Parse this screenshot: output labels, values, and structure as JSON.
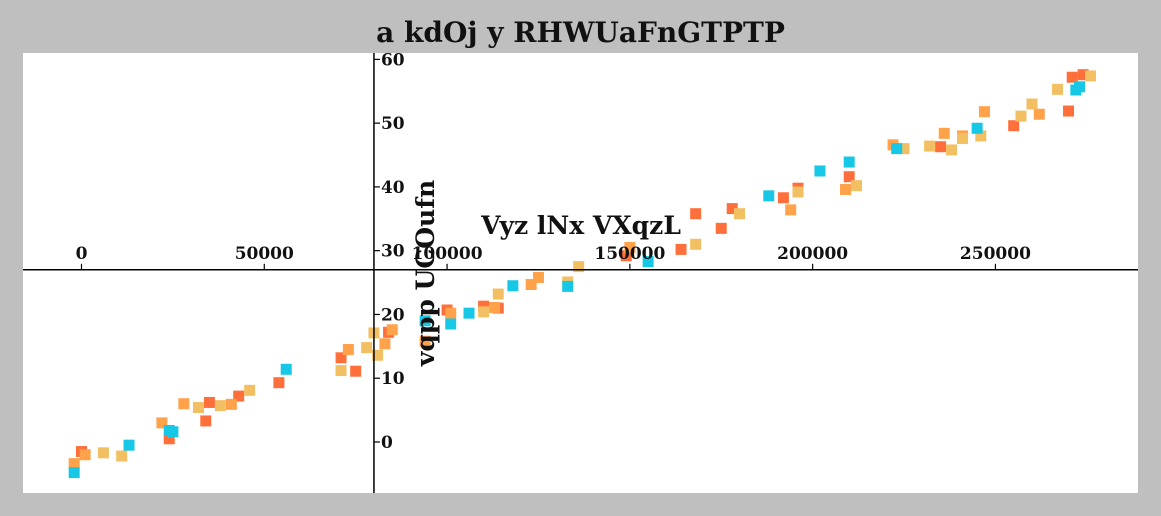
{
  "chart_data": {
    "type": "scatter",
    "title": "a kdOj y RHWUaFnGTPTP",
    "xlabel": "Vyz lNx VXqzL",
    "ylabel": "vqpp UCOufn",
    "xlim": [
      -16000,
      289000
    ],
    "ylim": [
      -8,
      61
    ],
    "x_ticks": [
      0,
      50000,
      100000,
      150000,
      200000,
      250000
    ],
    "x_tick_labels": [
      "0",
      "50000",
      "100000",
      "150000",
      "200000",
      "250000"
    ],
    "y_ticks": [
      0,
      10,
      20,
      30,
      40,
      50,
      60
    ],
    "y_tick_labels": [
      "0",
      "10",
      "20",
      "30",
      "40",
      "50",
      "60"
    ],
    "axes_cross": {
      "x_axis_at_y": 27,
      "y_axis_at_x": 80000
    },
    "grid": false,
    "legend": "none",
    "marker": "square",
    "series": [
      {
        "color": "#ff6f3c",
        "points": [
          [
            0,
            -1.5
          ],
          [
            24000,
            0.5
          ],
          [
            34000,
            3.3
          ],
          [
            35000,
            6.2
          ],
          [
            43000,
            7.2
          ],
          [
            54000,
            9.3
          ],
          [
            71000,
            13.2
          ],
          [
            75000,
            11.1
          ],
          [
            84000,
            17.2
          ],
          [
            100000,
            20.7
          ],
          [
            110000,
            21.3
          ],
          [
            114000,
            21.0
          ],
          [
            149000,
            29.2
          ],
          [
            164000,
            30.2
          ],
          [
            168000,
            35.8
          ],
          [
            175000,
            33.5
          ],
          [
            178000,
            36.6
          ],
          [
            192000,
            38.3
          ],
          [
            196000,
            39.8
          ],
          [
            210000,
            41.6
          ],
          [
            235000,
            46.3
          ],
          [
            255000,
            49.6
          ],
          [
            270000,
            51.9
          ],
          [
            271000,
            57.2
          ],
          [
            274000,
            57.6
          ]
        ]
      },
      {
        "color": "#ffa24a",
        "points": [
          [
            -2000,
            -3.4
          ],
          [
            1000,
            -2.0
          ],
          [
            22000,
            3.0
          ],
          [
            28000,
            6.0
          ],
          [
            41000,
            5.9
          ],
          [
            73000,
            14.5
          ],
          [
            83000,
            15.4
          ],
          [
            85000,
            17.6
          ],
          [
            94000,
            15.8
          ],
          [
            101000,
            20.2
          ],
          [
            113000,
            21.1
          ],
          [
            123000,
            24.7
          ],
          [
            125000,
            25.8
          ],
          [
            150000,
            30.5
          ],
          [
            194000,
            36.4
          ],
          [
            209000,
            39.6
          ],
          [
            222000,
            46.6
          ],
          [
            236000,
            48.4
          ],
          [
            241000,
            48.0
          ],
          [
            247000,
            51.8
          ],
          [
            262000,
            51.4
          ]
        ]
      },
      {
        "color": "#f2c063",
        "points": [
          [
            6000,
            -1.7
          ],
          [
            11000,
            -2.2
          ],
          [
            32000,
            5.4
          ],
          [
            38000,
            5.7
          ],
          [
            46000,
            8.1
          ],
          [
            71000,
            11.2
          ],
          [
            78000,
            14.8
          ],
          [
            80000,
            17.1
          ],
          [
            81000,
            13.6
          ],
          [
            110000,
            20.4
          ],
          [
            114000,
            23.2
          ],
          [
            133000,
            25.1
          ],
          [
            136000,
            27.5
          ],
          [
            168000,
            31.0
          ],
          [
            180000,
            35.8
          ],
          [
            196000,
            39.2
          ],
          [
            212000,
            40.2
          ],
          [
            225000,
            46.0
          ],
          [
            232000,
            46.4
          ],
          [
            238000,
            45.8
          ],
          [
            241000,
            47.6
          ],
          [
            246000,
            48.0
          ],
          [
            257000,
            51.1
          ],
          [
            260000,
            53.0
          ],
          [
            267000,
            55.3
          ],
          [
            276000,
            57.4
          ]
        ]
      },
      {
        "color": "#17c7e6",
        "points": [
          [
            -2000,
            -4.8
          ],
          [
            13000,
            -0.5
          ],
          [
            24000,
            1.8
          ],
          [
            25000,
            1.6
          ],
          [
            56000,
            11.4
          ],
          [
            94000,
            19.0
          ],
          [
            101000,
            18.5
          ],
          [
            106000,
            20.2
          ],
          [
            118000,
            24.5
          ],
          [
            133000,
            24.4
          ],
          [
            155000,
            28.3
          ],
          [
            188000,
            38.6
          ],
          [
            202000,
            42.5
          ],
          [
            210000,
            43.9
          ],
          [
            223000,
            46.0
          ],
          [
            245000,
            49.2
          ],
          [
            272000,
            55.2
          ],
          [
            273000,
            55.7
          ]
        ]
      }
    ]
  }
}
